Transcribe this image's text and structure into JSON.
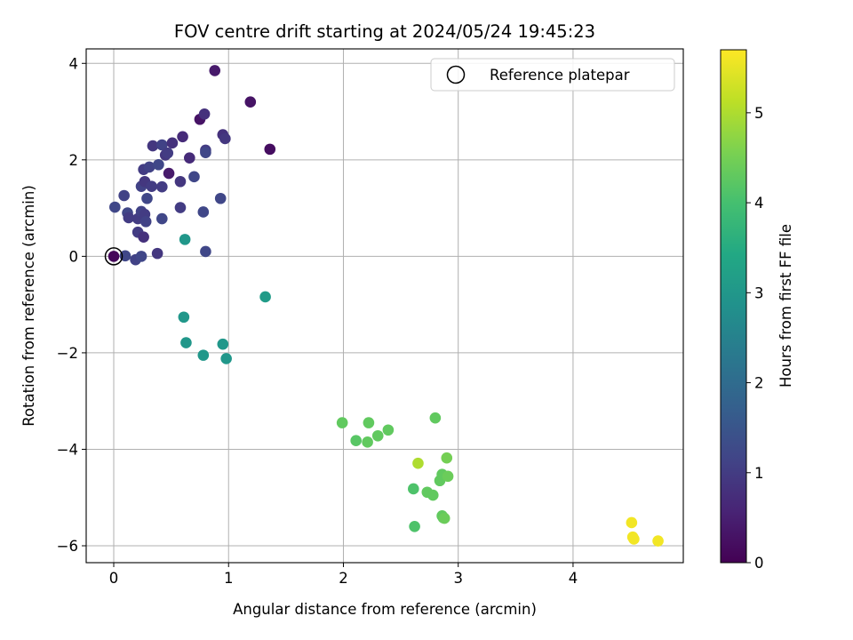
{
  "chart_data": {
    "type": "scatter",
    "title": "FOV centre drift starting at 2024/05/24 19:45:23",
    "xlabel": "Angular distance from reference (arcmin)",
    "ylabel": "Rotation from reference (arcmin)",
    "xlim": [
      -0.24,
      4.96
    ],
    "ylim": [
      -6.35,
      4.3
    ],
    "xticks": [
      0,
      1,
      2,
      3,
      4
    ],
    "yticks": [
      -6,
      -4,
      -2,
      0,
      2,
      4
    ],
    "xtick_labels": [
      "0",
      "1",
      "2",
      "3",
      "4"
    ],
    "ytick_labels": [
      "−6",
      "−4",
      "−2",
      "0",
      "2",
      "4"
    ],
    "grid": true,
    "colormap": "viridis",
    "colorbar": {
      "label": "Hours from first FF file",
      "range": [
        0,
        5.7
      ],
      "ticks": [
        0,
        1,
        2,
        3,
        4,
        5
      ],
      "tick_labels": [
        "0",
        "1",
        "2",
        "3",
        "4",
        "5"
      ]
    },
    "legend": {
      "placement": "top-right",
      "label": "Reference platepar"
    },
    "reference_point": {
      "x": 0,
      "y": 0
    },
    "points": [
      {
        "x": 0.0,
        "y": 0.0,
        "c": 0.1
      },
      {
        "x": 0.01,
        "y": 1.02,
        "c": 1.2
      },
      {
        "x": 0.1,
        "y": 0.01,
        "c": 1.2
      },
      {
        "x": 0.09,
        "y": 1.26,
        "c": 1.1
      },
      {
        "x": 0.12,
        "y": 0.9,
        "c": 1.2
      },
      {
        "x": 0.13,
        "y": 0.8,
        "c": 1.0
      },
      {
        "x": 0.19,
        "y": -0.07,
        "c": 1.1
      },
      {
        "x": 0.21,
        "y": 0.5,
        "c": 1.0
      },
      {
        "x": 0.21,
        "y": 0.78,
        "c": 1.0
      },
      {
        "x": 0.24,
        "y": 0.0,
        "c": 1.2
      },
      {
        "x": 0.24,
        "y": 0.93,
        "c": 1.1
      },
      {
        "x": 0.24,
        "y": 1.45,
        "c": 1.1
      },
      {
        "x": 0.26,
        "y": 0.4,
        "c": 0.8
      },
      {
        "x": 0.27,
        "y": 0.87,
        "c": 1.0
      },
      {
        "x": 0.27,
        "y": 1.55,
        "c": 0.9
      },
      {
        "x": 0.26,
        "y": 1.8,
        "c": 1.0
      },
      {
        "x": 0.28,
        "y": 0.72,
        "c": 1.1
      },
      {
        "x": 0.29,
        "y": 1.2,
        "c": 1.2
      },
      {
        "x": 0.31,
        "y": 1.85,
        "c": 1.1
      },
      {
        "x": 0.33,
        "y": 1.45,
        "c": 1.0
      },
      {
        "x": 0.34,
        "y": 2.29,
        "c": 0.9
      },
      {
        "x": 0.38,
        "y": 0.06,
        "c": 0.9
      },
      {
        "x": 0.39,
        "y": 1.9,
        "c": 1.2
      },
      {
        "x": 0.42,
        "y": 0.78,
        "c": 1.2
      },
      {
        "x": 0.42,
        "y": 1.44,
        "c": 1.0
      },
      {
        "x": 0.42,
        "y": 2.31,
        "c": 1.1
      },
      {
        "x": 0.45,
        "y": 2.1,
        "c": 0.9
      },
      {
        "x": 0.47,
        "y": 2.14,
        "c": 1.0
      },
      {
        "x": 0.48,
        "y": 1.72,
        "c": 0.4
      },
      {
        "x": 0.51,
        "y": 2.35,
        "c": 0.8
      },
      {
        "x": 0.58,
        "y": 1.55,
        "c": 0.9
      },
      {
        "x": 0.58,
        "y": 1.01,
        "c": 1.0
      },
      {
        "x": 0.6,
        "y": 2.48,
        "c": 0.7
      },
      {
        "x": 0.61,
        "y": -1.26,
        "c": 3.0
      },
      {
        "x": 0.62,
        "y": 0.35,
        "c": 3.0
      },
      {
        "x": 0.63,
        "y": -1.79,
        "c": 3.0
      },
      {
        "x": 0.66,
        "y": 2.04,
        "c": 0.7
      },
      {
        "x": 0.7,
        "y": 1.65,
        "c": 1.2
      },
      {
        "x": 0.75,
        "y": 2.84,
        "c": 0.3
      },
      {
        "x": 0.78,
        "y": 0.92,
        "c": 1.2
      },
      {
        "x": 0.78,
        "y": -2.05,
        "c": 3.0
      },
      {
        "x": 0.79,
        "y": 2.95,
        "c": 0.8
      },
      {
        "x": 0.8,
        "y": 2.2,
        "c": 1.0
      },
      {
        "x": 0.8,
        "y": 2.15,
        "c": 1.2
      },
      {
        "x": 0.8,
        "y": 0.1,
        "c": 1.2
      },
      {
        "x": 0.88,
        "y": 3.85,
        "c": 0.4
      },
      {
        "x": 0.93,
        "y": 1.2,
        "c": 1.2
      },
      {
        "x": 0.95,
        "y": -1.82,
        "c": 3.0
      },
      {
        "x": 0.95,
        "y": 2.52,
        "c": 0.8
      },
      {
        "x": 0.97,
        "y": 2.44,
        "c": 0.9
      },
      {
        "x": 0.98,
        "y": -2.12,
        "c": 3.0
      },
      {
        "x": 1.19,
        "y": 3.2,
        "c": 0.3
      },
      {
        "x": 1.32,
        "y": -0.84,
        "c": 3.1
      },
      {
        "x": 1.36,
        "y": 2.22,
        "c": 0.2
      },
      {
        "x": 1.99,
        "y": -3.45,
        "c": 4.3
      },
      {
        "x": 2.11,
        "y": -3.82,
        "c": 4.2
      },
      {
        "x": 2.21,
        "y": -3.85,
        "c": 4.3
      },
      {
        "x": 2.22,
        "y": -3.45,
        "c": 4.3
      },
      {
        "x": 2.3,
        "y": -3.72,
        "c": 4.3
      },
      {
        "x": 2.39,
        "y": -3.6,
        "c": 4.3
      },
      {
        "x": 2.61,
        "y": -4.82,
        "c": 4.1
      },
      {
        "x": 2.62,
        "y": -5.6,
        "c": 4.1
      },
      {
        "x": 2.65,
        "y": -4.29,
        "c": 5.0
      },
      {
        "x": 2.73,
        "y": -4.89,
        "c": 4.3
      },
      {
        "x": 2.78,
        "y": -4.95,
        "c": 4.3
      },
      {
        "x": 2.8,
        "y": -3.35,
        "c": 4.3
      },
      {
        "x": 2.84,
        "y": -4.65,
        "c": 4.3
      },
      {
        "x": 2.86,
        "y": -4.52,
        "c": 4.3
      },
      {
        "x": 2.86,
        "y": -5.38,
        "c": 4.3
      },
      {
        "x": 2.87,
        "y": -5.42,
        "c": 4.3
      },
      {
        "x": 2.88,
        "y": -5.43,
        "c": 4.4
      },
      {
        "x": 2.9,
        "y": -4.18,
        "c": 4.5
      },
      {
        "x": 2.91,
        "y": -4.56,
        "c": 4.4
      },
      {
        "x": 4.51,
        "y": -5.52,
        "c": 5.6
      },
      {
        "x": 4.52,
        "y": -5.82,
        "c": 5.6
      },
      {
        "x": 4.53,
        "y": -5.86,
        "c": 5.6
      },
      {
        "x": 4.74,
        "y": -5.9,
        "c": 5.6
      }
    ]
  }
}
